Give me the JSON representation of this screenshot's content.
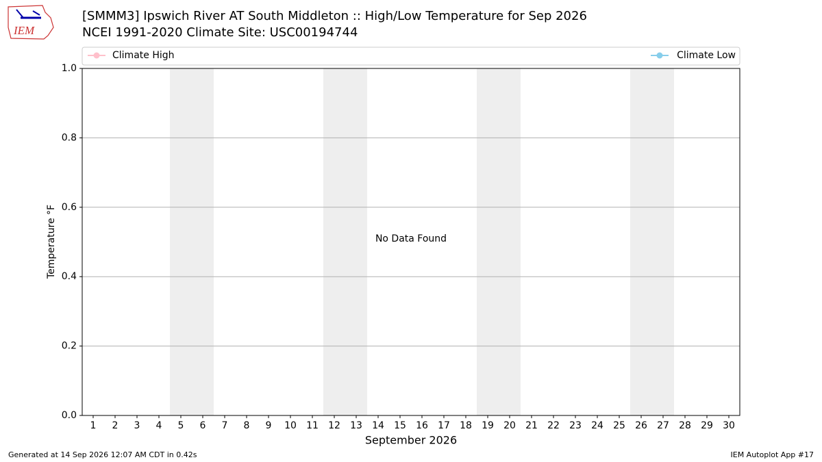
{
  "chart_data": {
    "type": "line",
    "logo": "IEM",
    "title": "[SMMM3] Ipswich River  AT South Middleton :: High/Low Temperature for Sep 2026",
    "subtitle": "NCEI 1991-2020 Climate Site: USC00194744",
    "x": [
      1,
      2,
      3,
      4,
      5,
      6,
      7,
      8,
      9,
      10,
      11,
      12,
      13,
      14,
      15,
      16,
      17,
      18,
      19,
      20,
      21,
      22,
      23,
      24,
      25,
      26,
      27,
      28,
      29,
      30
    ],
    "series": [
      {
        "name": "Climate High",
        "color": "#ffc0cb",
        "values": [
          null,
          null,
          null,
          null,
          null,
          null,
          null,
          null,
          null,
          null,
          null,
          null,
          null,
          null,
          null,
          null,
          null,
          null,
          null,
          null,
          null,
          null,
          null,
          null,
          null,
          null,
          null,
          null,
          null,
          null
        ]
      },
      {
        "name": "Climate Low",
        "color": "#87ceeb",
        "values": [
          null,
          null,
          null,
          null,
          null,
          null,
          null,
          null,
          null,
          null,
          null,
          null,
          null,
          null,
          null,
          null,
          null,
          null,
          null,
          null,
          null,
          null,
          null,
          null,
          null,
          null,
          null,
          null,
          null,
          null
        ]
      }
    ],
    "xlim": [
      0.5,
      30.5
    ],
    "xticks": [
      1,
      2,
      3,
      4,
      5,
      6,
      7,
      8,
      9,
      10,
      11,
      12,
      13,
      14,
      15,
      16,
      17,
      18,
      19,
      20,
      21,
      22,
      23,
      24,
      25,
      26,
      27,
      28,
      29,
      30
    ],
    "ylim": [
      0,
      1
    ],
    "yticks": [
      {
        "value": 0,
        "label": "0.0"
      },
      {
        "value": 0.2,
        "label": "0.2"
      },
      {
        "value": 0.4,
        "label": "0.4"
      },
      {
        "value": 0.6,
        "label": "0.6"
      },
      {
        "value": 0.8,
        "label": "0.8"
      },
      {
        "value": 1,
        "label": "1.0"
      }
    ],
    "shaded_spans": [
      [
        4.5,
        6.5
      ],
      [
        11.5,
        13.5
      ],
      [
        18.5,
        20.5
      ],
      [
        25.5,
        27.5
      ]
    ],
    "shade_color": "#eeeeee",
    "grid": true,
    "xlabel": "September 2026",
    "ylabel": "Temperature °F",
    "annotation": "No Data Found",
    "footer_left": "Generated at 14 Sep 2026 12:07 AM CDT in 0.42s",
    "footer_right": "IEM Autoplot App #17"
  }
}
